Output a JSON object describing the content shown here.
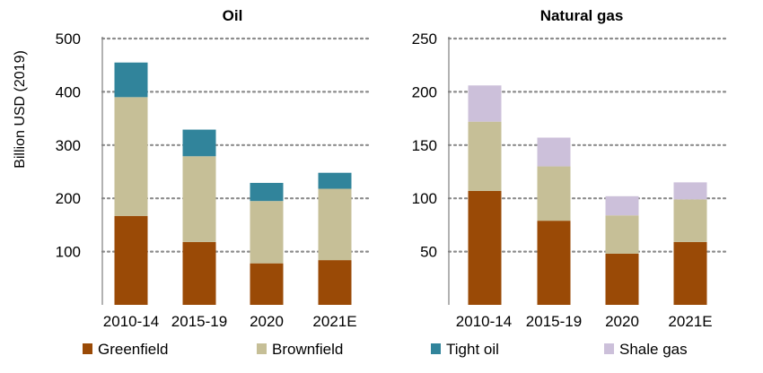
{
  "chart_data": [
    {
      "type": "bar",
      "stacked": true,
      "title": "Oil",
      "ylabel": "Billion USD (2019)",
      "categories": [
        "2010-14",
        "2015-19",
        "2020",
        "2021E"
      ],
      "ylim": [
        0,
        500
      ],
      "yticks": [
        100,
        200,
        300,
        400,
        500
      ],
      "grid": true,
      "series": [
        {
          "name": "Greenfield",
          "color": "#9a4a06",
          "values": [
            167,
            118,
            78,
            84
          ]
        },
        {
          "name": "Brownfield",
          "color": "#c6bf97",
          "values": [
            223,
            161,
            117,
            134
          ]
        },
        {
          "name": "Tight oil",
          "color": "#31849b",
          "values": [
            65,
            50,
            34,
            30
          ]
        }
      ]
    },
    {
      "type": "bar",
      "stacked": true,
      "title": "Natural gas",
      "ylabel": "",
      "categories": [
        "2010-14",
        "2015-19",
        "2020",
        "2021E"
      ],
      "ylim": [
        0,
        250
      ],
      "yticks": [
        50,
        100,
        150,
        200,
        250
      ],
      "grid": true,
      "series": [
        {
          "name": "Greenfield",
          "color": "#9a4a06",
          "values": [
            107,
            79,
            48,
            59
          ]
        },
        {
          "name": "Brownfield",
          "color": "#c6bf97",
          "values": [
            65,
            51,
            36,
            40
          ]
        },
        {
          "name": "Shale gas",
          "color": "#ccc0da",
          "values": [
            34,
            27,
            18,
            16
          ]
        }
      ]
    }
  ],
  "legend": {
    "placement": "bottom",
    "items": [
      {
        "name": "Greenfield",
        "color": "#9a4a06"
      },
      {
        "name": "Brownfield",
        "color": "#c6bf97"
      },
      {
        "name": "Tight oil",
        "color": "#31849b"
      },
      {
        "name": "Shale gas",
        "color": "#ccc0da"
      }
    ]
  }
}
